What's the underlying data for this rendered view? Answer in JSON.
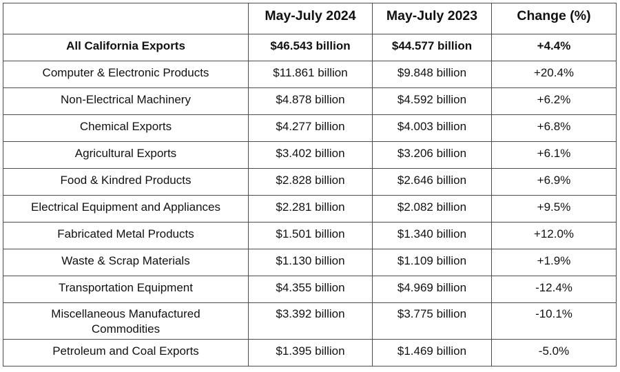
{
  "table": {
    "headers": [
      "",
      "May-July 2024",
      "May-July 2023",
      "Change (%)"
    ],
    "rows": [
      {
        "category": "All California Exports",
        "y2024": "$46.543 billion",
        "y2023": "$44.577 billion",
        "change": "+4.4%",
        "bold": true
      },
      {
        "category": "Computer & Electronic Products",
        "y2024": "$11.861 billion",
        "y2023": "$9.848 billion",
        "change": "+20.4%"
      },
      {
        "category": "Non-Electrical Machinery",
        "y2024": "$4.878 billion",
        "y2023": "$4.592 billion",
        "change": "+6.2%"
      },
      {
        "category": "Chemical Exports",
        "y2024": "$4.277 billion",
        "y2023": "$4.003 billion",
        "change": "+6.8%"
      },
      {
        "category": "Agricultural Exports",
        "y2024": "$3.402 billion",
        "y2023": "$3.206 billion",
        "change": "+6.1%"
      },
      {
        "category": "Food & Kindred Products",
        "y2024": "$2.828 billion",
        "y2023": "$2.646 billion",
        "change": "+6.9%"
      },
      {
        "category": "Electrical Equipment and Appliances",
        "y2024": "$2.281 billion",
        "y2023": "$2.082 billion",
        "change": "+9.5%"
      },
      {
        "category": "Fabricated Metal Products",
        "y2024": "$1.501 billion",
        "y2023": "$1.340 billion",
        "change": "+12.0%"
      },
      {
        "category": "Waste & Scrap Materials",
        "y2024": "$1.130 billion",
        "y2023": "$1.109 billion",
        "change": "+1.9%"
      },
      {
        "category": "Transportation Equipment",
        "y2024": "$4.355 billion",
        "y2023": "$4.969 billion",
        "change": "-12.4%"
      },
      {
        "category": "Miscellaneous Manufactured Commodities",
        "y2024": "$3.392 billion",
        "y2023": "$3.775 billion",
        "change": "-10.1%"
      },
      {
        "category": "Petroleum and Coal Exports",
        "y2024": "$1.395 billion",
        "y2023": "$1.469 billion",
        "change": "-5.0%"
      }
    ]
  }
}
